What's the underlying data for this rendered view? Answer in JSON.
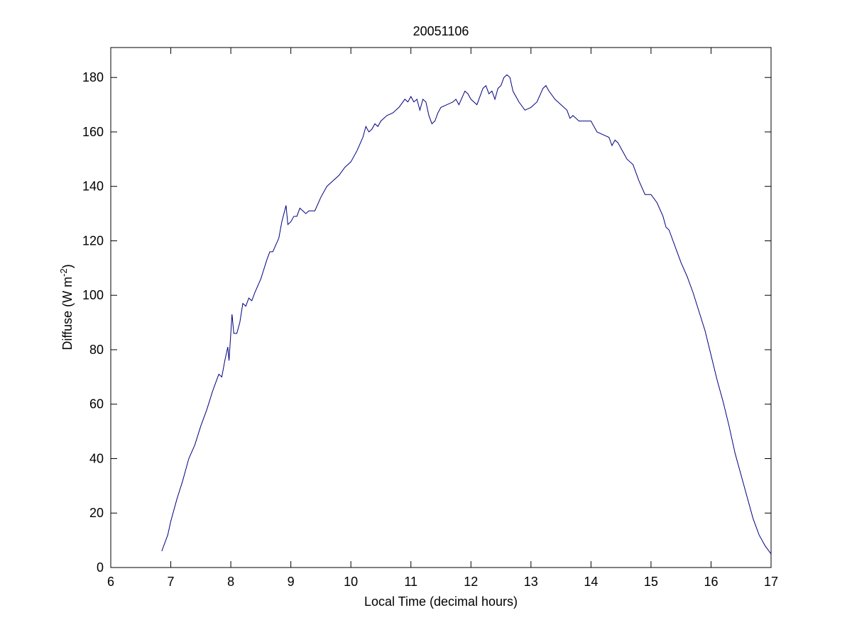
{
  "chart_data": {
    "type": "line",
    "title": "20051106",
    "xlabel": "Local Time (decimal hours)",
    "ylabel": [
      "Diffuse (W m",
      "-2",
      ")"
    ],
    "x": [
      6.85,
      6.95,
      7.0,
      7.1,
      7.2,
      7.3,
      7.4,
      7.5,
      7.6,
      7.7,
      7.8,
      7.85,
      7.9,
      7.95,
      7.97,
      8.0,
      8.02,
      8.05,
      8.1,
      8.15,
      8.2,
      8.25,
      8.3,
      8.35,
      8.4,
      8.5,
      8.6,
      8.65,
      8.7,
      8.8,
      8.85,
      8.92,
      8.95,
      9.0,
      9.05,
      9.1,
      9.15,
      9.2,
      9.25,
      9.3,
      9.4,
      9.5,
      9.6,
      9.7,
      9.8,
      9.9,
      10.0,
      10.1,
      10.2,
      10.25,
      10.3,
      10.35,
      10.4,
      10.45,
      10.5,
      10.6,
      10.7,
      10.8,
      10.9,
      10.95,
      11.0,
      11.05,
      11.1,
      11.15,
      11.2,
      11.25,
      11.3,
      11.35,
      11.4,
      11.45,
      11.5,
      11.6,
      11.7,
      11.75,
      11.8,
      11.9,
      11.95,
      12.0,
      12.1,
      12.2,
      12.25,
      12.3,
      12.35,
      12.4,
      12.45,
      12.5,
      12.55,
      12.6,
      12.65,
      12.7,
      12.8,
      12.9,
      13.0,
      13.1,
      13.2,
      13.25,
      13.3,
      13.4,
      13.5,
      13.6,
      13.65,
      13.7,
      13.8,
      13.9,
      14.0,
      14.1,
      14.2,
      14.3,
      14.35,
      14.4,
      14.45,
      14.5,
      14.6,
      14.7,
      14.8,
      14.9,
      15.0,
      15.1,
      15.2,
      15.25,
      15.3,
      15.4,
      15.5,
      15.6,
      15.7,
      15.8,
      15.9,
      16.0,
      16.1,
      16.2,
      16.3,
      16.4,
      16.5,
      16.6,
      16.7,
      16.8,
      16.9,
      17.0
    ],
    "series": [
      {
        "color": "#000080",
        "values": [
          6,
          12,
          17,
          25,
          32,
          40,
          45,
          52,
          58,
          65,
          71,
          70,
          76,
          81,
          76,
          86,
          93,
          86,
          86,
          90,
          97,
          96,
          99,
          98,
          101,
          106,
          113,
          116,
          116,
          121,
          127,
          133,
          126,
          127,
          129,
          129,
          132,
          131,
          130,
          131,
          131,
          136,
          140,
          142,
          144,
          147,
          149,
          153,
          158,
          162,
          160,
          161,
          163,
          162,
          164,
          166,
          167,
          169,
          172,
          171,
          173,
          171,
          172,
          168,
          172,
          171,
          166,
          163,
          164,
          167,
          169,
          170,
          171,
          172,
          170,
          175,
          174,
          172,
          170,
          176,
          177,
          174,
          175,
          172,
          176,
          177,
          180,
          181,
          180,
          175,
          171,
          168,
          169,
          171,
          176,
          177,
          175,
          172,
          170,
          168,
          165,
          166,
          164,
          164,
          164,
          160,
          159,
          158,
          155,
          157,
          156,
          154,
          150,
          148,
          142,
          137,
          137,
          134,
          129,
          125,
          124,
          118,
          112,
          107,
          101,
          94,
          87,
          78,
          69,
          61,
          52,
          42,
          34,
          26,
          18,
          12,
          8,
          5
        ]
      }
    ],
    "xlim": [
      6,
      17
    ],
    "xticks": [
      6,
      7,
      8,
      9,
      10,
      11,
      12,
      13,
      14,
      15,
      16,
      17
    ],
    "ylim": [
      0,
      191
    ],
    "yticks": [
      0,
      20,
      40,
      60,
      80,
      100,
      120,
      140,
      160,
      180
    ]
  }
}
